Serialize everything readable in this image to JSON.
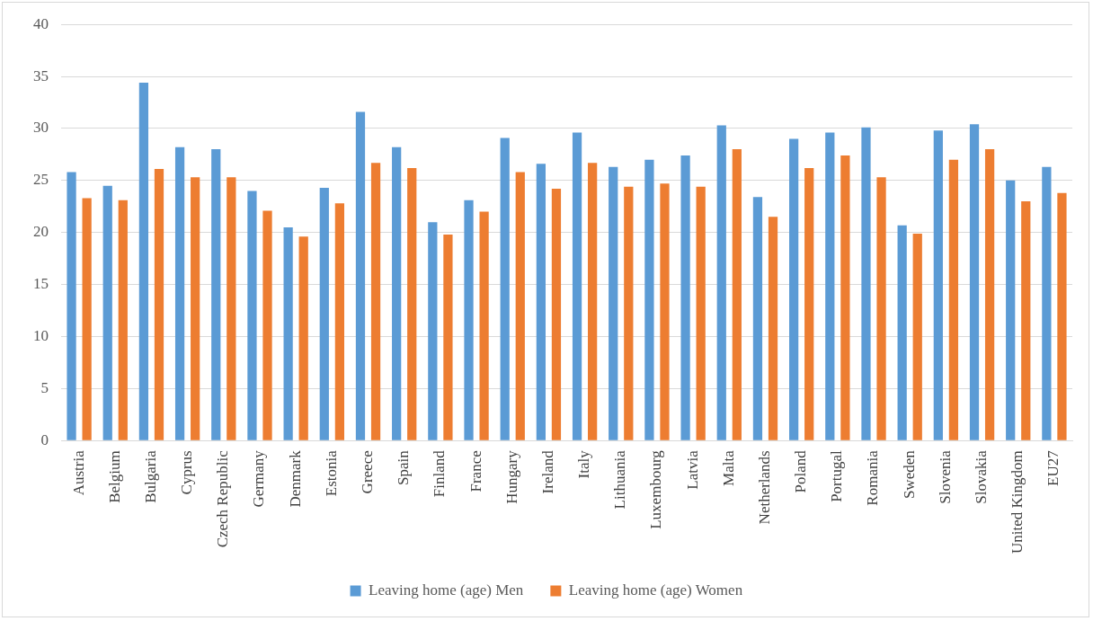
{
  "chart_data": {
    "type": "bar",
    "categories": [
      "Austria",
      "Belgium",
      "Bulgaria",
      "Cyprus",
      "Czech Republic",
      "Germany",
      "Denmark",
      "Estonia",
      "Greece",
      "Spain",
      "Finland",
      "France",
      "Hungary",
      "Ireland",
      "Italy",
      "Lithuania",
      "Luxembourg",
      "Latvia",
      "Malta",
      "Netherlands",
      "Poland",
      "Portugal",
      "Romania",
      "Sweden",
      "Slovenia",
      "Slovakia",
      "United Kingdom",
      "EU27"
    ],
    "series": [
      {
        "name": "Leaving home (age) Men",
        "color": "#5b9bd5",
        "values": [
          25.8,
          24.5,
          34.4,
          28.2,
          28.0,
          24.0,
          20.5,
          24.3,
          31.6,
          28.2,
          21.0,
          23.1,
          29.1,
          26.6,
          29.6,
          26.3,
          27.0,
          27.4,
          30.3,
          23.4,
          29.0,
          29.6,
          30.1,
          20.7,
          29.8,
          30.4,
          25.0,
          26.3
        ]
      },
      {
        "name": "Leaving home (age) Women",
        "color": "#ed7d31",
        "values": [
          23.3,
          23.1,
          26.1,
          25.3,
          25.3,
          22.1,
          19.6,
          22.8,
          26.7,
          26.2,
          19.8,
          22.0,
          25.8,
          24.2,
          26.7,
          24.4,
          24.7,
          24.4,
          28.0,
          21.5,
          26.2,
          27.4,
          25.3,
          19.9,
          27.0,
          28.0,
          23.0,
          23.8
        ]
      }
    ],
    "ylim": [
      0,
      40
    ],
    "yticks": [
      0,
      5,
      10,
      15,
      20,
      25,
      30,
      35,
      40
    ],
    "grid": "y",
    "legend": "bottom"
  }
}
